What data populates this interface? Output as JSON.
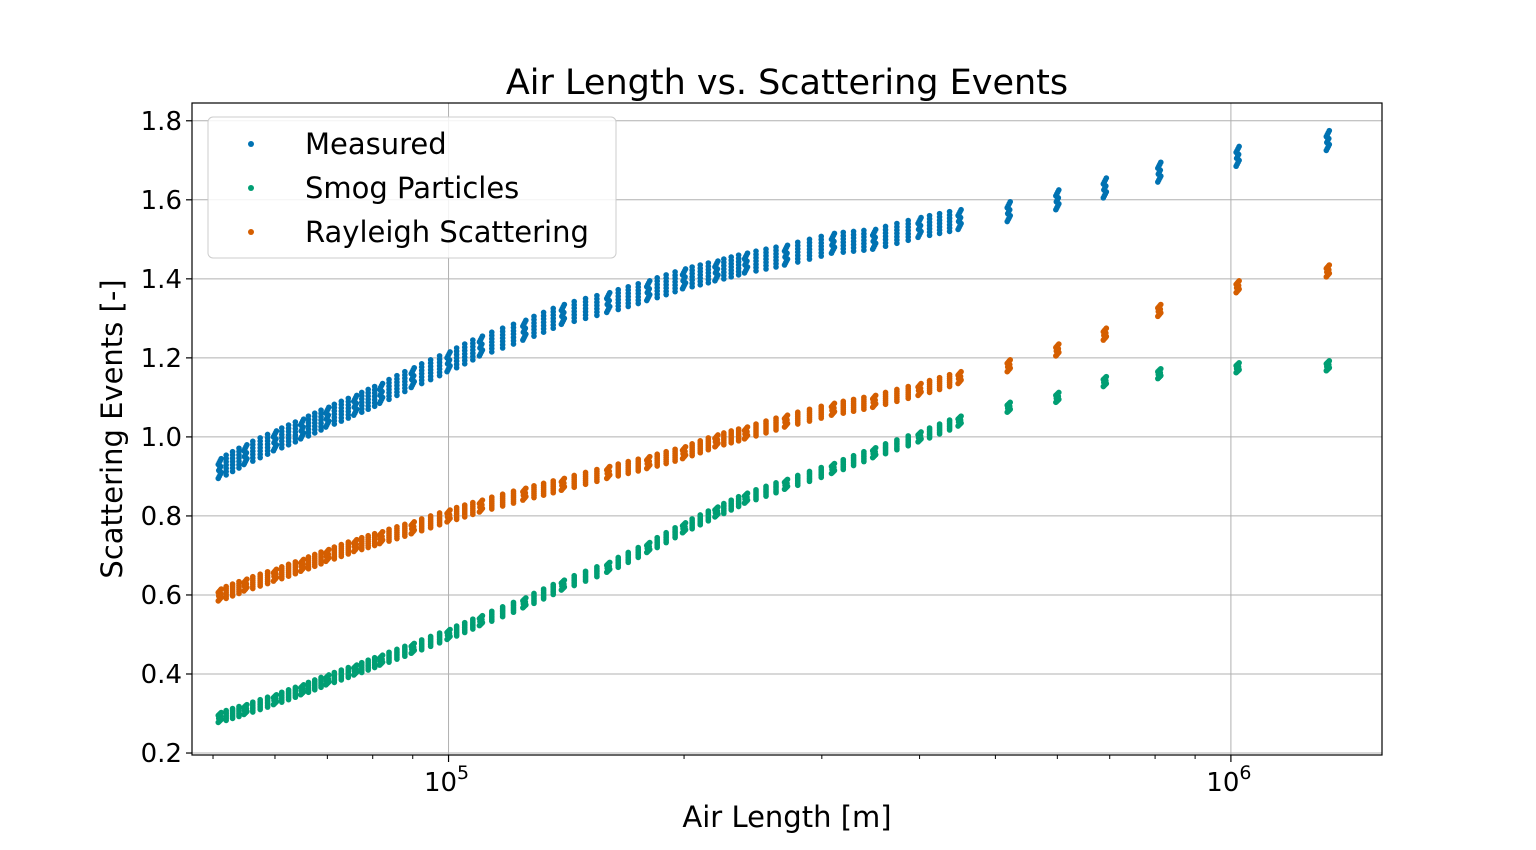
{
  "chart_data": {
    "type": "scatter",
    "title": "Air Length vs. Scattering Events",
    "xlabel": "Air Length [m]",
    "ylabel": "Scattering Events [-]",
    "xscale": "log",
    "xlim": [
      47000,
      1560000
    ],
    "ylim": [
      0.195,
      1.845
    ],
    "yticks": [
      0.2,
      0.4,
      0.6,
      0.8,
      1.0,
      1.2,
      1.4,
      1.6,
      1.8
    ],
    "ytick_labels": [
      "0.2",
      "0.4",
      "0.6",
      "0.8",
      "1.0",
      "1.2",
      "1.4",
      "1.6",
      "1.8"
    ],
    "xticks_major": [
      {
        "value": 100000,
        "base": "10",
        "exp": "5"
      },
      {
        "value": 1000000,
        "base": "10",
        "exp": "6"
      }
    ],
    "grid": true,
    "legend_position": "top-left",
    "series": [
      {
        "name": "Measured",
        "color": "#0072b2",
        "spread": 0.05,
        "x": [
          51000,
          55000,
          60000,
          65000,
          70000,
          76000,
          82000,
          90000,
          100000,
          110000,
          125000,
          140000,
          160000,
          180000,
          200000,
          220000,
          240000,
          270000,
          310000,
          350000,
          400000,
          450000,
          520000,
          600000,
          690000,
          810000,
          1020000,
          1330000
        ],
        "y": [
          0.92,
          0.955,
          0.99,
          1.02,
          1.05,
          1.08,
          1.11,
          1.15,
          1.19,
          1.23,
          1.27,
          1.31,
          1.34,
          1.37,
          1.4,
          1.42,
          1.44,
          1.46,
          1.49,
          1.5,
          1.53,
          1.55,
          1.57,
          1.6,
          1.63,
          1.67,
          1.71,
          1.75
        ]
      },
      {
        "name": "Smog Particles",
        "color": "#009e73",
        "spread": 0.025,
        "x": [
          51000,
          55000,
          60000,
          65000,
          70000,
          76000,
          82000,
          90000,
          100000,
          110000,
          125000,
          140000,
          160000,
          180000,
          200000,
          220000,
          240000,
          270000,
          310000,
          350000,
          400000,
          450000,
          520000,
          600000,
          690000,
          810000,
          1020000,
          1330000
        ],
        "y": [
          0.29,
          0.31,
          0.335,
          0.36,
          0.385,
          0.41,
          0.435,
          0.465,
          0.5,
          0.535,
          0.58,
          0.625,
          0.67,
          0.72,
          0.77,
          0.81,
          0.845,
          0.88,
          0.92,
          0.96,
          1.0,
          1.04,
          1.075,
          1.1,
          1.14,
          1.16,
          1.175,
          1.18
        ]
      },
      {
        "name": "Rayleigh Scattering",
        "color": "#d55e00",
        "spread": 0.03,
        "x": [
          51000,
          55000,
          60000,
          65000,
          70000,
          76000,
          82000,
          90000,
          100000,
          110000,
          125000,
          140000,
          160000,
          180000,
          200000,
          220000,
          240000,
          270000,
          310000,
          350000,
          400000,
          450000,
          520000,
          600000,
          690000,
          810000,
          1020000,
          1330000
        ],
        "y": [
          0.6,
          0.625,
          0.65,
          0.675,
          0.7,
          0.725,
          0.745,
          0.77,
          0.8,
          0.825,
          0.855,
          0.88,
          0.91,
          0.935,
          0.96,
          0.99,
          1.01,
          1.04,
          1.07,
          1.09,
          1.12,
          1.15,
          1.18,
          1.22,
          1.26,
          1.32,
          1.38,
          1.42
        ]
      }
    ]
  }
}
